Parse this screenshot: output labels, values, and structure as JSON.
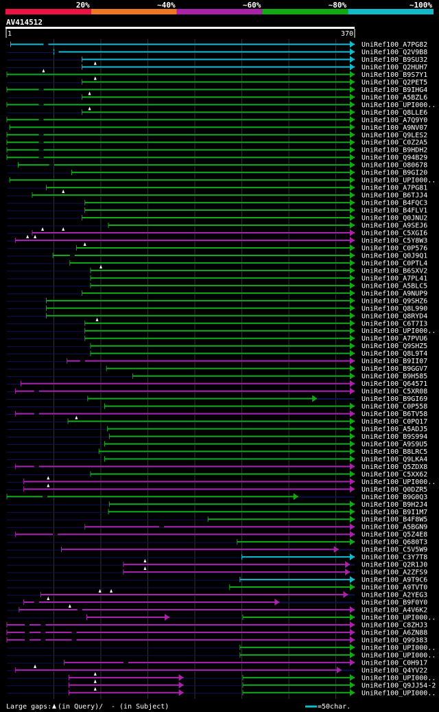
{
  "chart_data": {
    "type": "alignment",
    "title": "AV414512",
    "query_start": 1,
    "query_end": 370,
    "scale_labels": [
      "1",
      "370"
    ],
    "identity_legend": [
      {
        "label": "20%",
        "color": "#ee1144"
      },
      {
        "label": "~40%",
        "color": "#ee7722"
      },
      {
        "label": "~60%",
        "color": "#aa22aa"
      },
      {
        "label": "~80%",
        "color": "#11aa11"
      },
      {
        "label": "~100%",
        "color": "#11bbcc"
      }
    ],
    "footer": {
      "gaps_label": "Large gaps:",
      "gaps_query": "(in Query)/",
      "gaps_subject": "- (in Subject)",
      "scale_note": "=50char."
    },
    "hits": [
      {
        "name": "UniRef100_A7PG82",
        "start": 4,
        "end": 370,
        "color": "teal",
        "tail": 0,
        "gaps": [
          39
        ],
        "carets": []
      },
      {
        "name": "UniRef100_Q2V9B8",
        "start": 50,
        "end": 370,
        "color": "teal",
        "tail": 0,
        "gaps": [
          50
        ],
        "carets": []
      },
      {
        "name": "UniRef100_B9SU32",
        "start": 80,
        "end": 370,
        "color": "teal",
        "tail": 0,
        "gaps": [],
        "carets": []
      },
      {
        "name": "UniRef100_Q2HUH7",
        "start": 80,
        "end": 370,
        "color": "teal",
        "tail": 0,
        "gaps": [],
        "carets": [
          94
        ]
      },
      {
        "name": "UniRef100_B9S7Y1",
        "start": 0,
        "end": 370,
        "color": "green",
        "tail": 0,
        "gaps": [],
        "carets": [
          39
        ]
      },
      {
        "name": "UniRef100_Q2PET5",
        "start": 80,
        "end": 370,
        "color": "green",
        "tail": 0,
        "gaps": [],
        "carets": [
          94
        ]
      },
      {
        "name": "UniRef100_B9IHG4",
        "start": 0,
        "end": 370,
        "color": "green",
        "tail": 0,
        "gaps": [
          34
        ],
        "carets": []
      },
      {
        "name": "UniRef100_A5BZL6",
        "start": 80,
        "end": 370,
        "color": "green",
        "tail": 0,
        "gaps": [],
        "carets": [
          88
        ]
      },
      {
        "name": "UniRef100_UPI000..",
        "start": 0,
        "end": 370,
        "color": "green",
        "tail": 0,
        "gaps": [
          34
        ],
        "carets": []
      },
      {
        "name": "UniRef100_Q8LLE6",
        "start": 80,
        "end": 370,
        "color": "green",
        "tail": 0,
        "gaps": [],
        "carets": [
          88
        ]
      },
      {
        "name": "UniRef100_A7Q9Y0",
        "start": 0,
        "end": 370,
        "color": "green",
        "tail": 0,
        "gaps": [
          34
        ],
        "carets": []
      },
      {
        "name": "UniRef100_A9NV07",
        "start": 3,
        "end": 370,
        "color": "green",
        "tail": 0,
        "gaps": [],
        "carets": []
      },
      {
        "name": "UniRef100_Q9LES2",
        "start": 0,
        "end": 370,
        "color": "green",
        "tail": 0,
        "gaps": [
          34
        ],
        "carets": []
      },
      {
        "name": "UniRef100_C0Z2A5",
        "start": 0,
        "end": 370,
        "color": "green",
        "tail": 0,
        "gaps": [
          34
        ],
        "carets": []
      },
      {
        "name": "UniRef100_B9HDH2",
        "start": 0,
        "end": 370,
        "color": "green",
        "tail": 0,
        "gaps": [
          34
        ],
        "carets": []
      },
      {
        "name": "UniRef100_Q94B29",
        "start": 0,
        "end": 370,
        "color": "green",
        "tail": 0,
        "gaps": [
          34
        ],
        "carets": []
      },
      {
        "name": "UniRef100_O80678",
        "start": 12,
        "end": 370,
        "color": "green",
        "tail": 0,
        "gaps": [
          45
        ],
        "carets": []
      },
      {
        "name": "UniRef100_B9GI20",
        "start": 69,
        "end": 370,
        "color": "green",
        "tail": 0,
        "gaps": [],
        "carets": []
      },
      {
        "name": "UniRef100_UPI000..",
        "start": 3,
        "end": 370,
        "color": "green",
        "tail": 0,
        "gaps": [],
        "carets": []
      },
      {
        "name": "UniRef100_A7PG81",
        "start": 42,
        "end": 370,
        "color": "green",
        "tail": 0,
        "gaps": [],
        "carets": []
      },
      {
        "name": "UniRef100_B6TJJ4",
        "start": 27,
        "end": 370,
        "color": "green",
        "tail": 0,
        "gaps": [],
        "carets": [
          60
        ]
      },
      {
        "name": "UniRef100_B4FQC3",
        "start": 83,
        "end": 370,
        "color": "green",
        "tail": 0,
        "gaps": [],
        "carets": []
      },
      {
        "name": "UniRef100_B4FLV1",
        "start": 83,
        "end": 370,
        "color": "green",
        "tail": 0,
        "gaps": [],
        "carets": []
      },
      {
        "name": "UniRef100_Q0JNU2",
        "start": 80,
        "end": 370,
        "color": "green",
        "tail": 0,
        "gaps": [],
        "carets": []
      },
      {
        "name": "UniRef100_A9SEJ6",
        "start": 108,
        "end": 370,
        "color": "green",
        "tail": 0,
        "gaps": [],
        "carets": []
      },
      {
        "name": "UniRef100_C5XGI6",
        "start": 27,
        "end": 370,
        "color": "purple",
        "tail": 0,
        "gaps": [],
        "carets": [
          38,
          60
        ]
      },
      {
        "name": "UniRef100_C5Y8W3",
        "start": 9,
        "end": 370,
        "color": "purple",
        "tail": 0,
        "gaps": [],
        "carets": [
          22,
          30
        ]
      },
      {
        "name": "UniRef100_C0P576",
        "start": 74,
        "end": 370,
        "color": "green",
        "tail": 0,
        "gaps": [],
        "carets": [
          83
        ]
      },
      {
        "name": "UniRef100_Q0J9Q1",
        "start": 49,
        "end": 370,
        "color": "green",
        "tail": 0,
        "gaps": [
          67
        ],
        "carets": []
      },
      {
        "name": "UniRef100_C0PTL4",
        "start": 67,
        "end": 370,
        "color": "green",
        "tail": 0,
        "gaps": [],
        "carets": []
      },
      {
        "name": "UniRef100_B6SXV2",
        "start": 89,
        "end": 370,
        "color": "green",
        "tail": 0,
        "gaps": [],
        "carets": [
          100
        ]
      },
      {
        "name": "UniRef100_A7PL41",
        "start": 89,
        "end": 370,
        "color": "green",
        "tail": 0,
        "gaps": [],
        "carets": []
      },
      {
        "name": "UniRef100_A5BLC5",
        "start": 89,
        "end": 370,
        "color": "green",
        "tail": 0,
        "gaps": [],
        "carets": []
      },
      {
        "name": "UniRef100_A9NUP9",
        "start": 80,
        "end": 370,
        "color": "green",
        "tail": 0,
        "gaps": [],
        "carets": []
      },
      {
        "name": "UniRef100_Q9SHZ6",
        "start": 42,
        "end": 370,
        "color": "green",
        "tail": 0,
        "gaps": [],
        "carets": []
      },
      {
        "name": "UniRef100_Q8L990",
        "start": 42,
        "end": 370,
        "color": "green",
        "tail": 0,
        "gaps": [],
        "carets": []
      },
      {
        "name": "UniRef100_Q8RYD4",
        "start": 42,
        "end": 370,
        "color": "green",
        "tail": 0,
        "gaps": [],
        "carets": []
      },
      {
        "name": "UniRef100_C6T7I3",
        "start": 83,
        "end": 370,
        "color": "green",
        "tail": 0,
        "gaps": [],
        "carets": [
          96
        ]
      },
      {
        "name": "UniRef100_UPI000..",
        "start": 83,
        "end": 370,
        "color": "green",
        "tail": 0,
        "gaps": [],
        "carets": []
      },
      {
        "name": "UniRef100_A7PVU6",
        "start": 83,
        "end": 370,
        "color": "green",
        "tail": 0,
        "gaps": [],
        "carets": []
      },
      {
        "name": "UniRef100_Q9SHZ5",
        "start": 89,
        "end": 370,
        "color": "green",
        "tail": 0,
        "gaps": [],
        "carets": []
      },
      {
        "name": "UniRef100_Q8L9T4",
        "start": 89,
        "end": 370,
        "color": "green",
        "tail": 0,
        "gaps": [],
        "carets": []
      },
      {
        "name": "UniRef100_B9II07",
        "start": 64,
        "end": 370,
        "color": "purple",
        "tail": 0,
        "gaps": [
          78
        ],
        "carets": []
      },
      {
        "name": "UniRef100_B9GGV7",
        "start": 106,
        "end": 370,
        "color": "green",
        "tail": 0,
        "gaps": [],
        "carets": []
      },
      {
        "name": "UniRef100_B9H585",
        "start": 134,
        "end": 370,
        "color": "green",
        "tail": 0,
        "gaps": [],
        "carets": []
      },
      {
        "name": "UniRef100_Q64571",
        "start": 15,
        "end": 370,
        "color": "purple",
        "tail": 0,
        "gaps": [],
        "carets": []
      },
      {
        "name": "UniRef100_C5XR08",
        "start": 9,
        "end": 370,
        "color": "purple",
        "tail": 0,
        "gaps": [
          29
        ],
        "carets": []
      },
      {
        "name": "UniRef100_B9GI69",
        "start": 86,
        "end": 330,
        "color": "green",
        "tail": 40,
        "gaps": [],
        "carets": []
      },
      {
        "name": "UniRef100_C0P558",
        "start": 104,
        "end": 370,
        "color": "green",
        "tail": 0,
        "gaps": [],
        "carets": []
      },
      {
        "name": "UniRef100_B6TV58",
        "start": 9,
        "end": 370,
        "color": "purple",
        "tail": 0,
        "gaps": [
          29
        ],
        "carets": []
      },
      {
        "name": "UniRef100_C0PQ17",
        "start": 65,
        "end": 370,
        "color": "green",
        "tail": 0,
        "gaps": [],
        "carets": [
          74
        ]
      },
      {
        "name": "UniRef100_A5ADJ5",
        "start": 107,
        "end": 370,
        "color": "green",
        "tail": 0,
        "gaps": [],
        "carets": []
      },
      {
        "name": "UniRef100_B9S994",
        "start": 109,
        "end": 370,
        "color": "green",
        "tail": 0,
        "gaps": [],
        "carets": []
      },
      {
        "name": "UniRef100_A9S9U5",
        "start": 104,
        "end": 370,
        "color": "green",
        "tail": 0,
        "gaps": [],
        "carets": []
      },
      {
        "name": "UniRef100_B8LRC5",
        "start": 98,
        "end": 370,
        "color": "green",
        "tail": 0,
        "gaps": [],
        "carets": []
      },
      {
        "name": "UniRef100_Q9LKA4",
        "start": 104,
        "end": 370,
        "color": "green",
        "tail": 0,
        "gaps": [],
        "carets": []
      },
      {
        "name": "UniRef100_Q5ZDX8",
        "start": 9,
        "end": 370,
        "color": "purple",
        "tail": 0,
        "gaps": [
          29
        ],
        "carets": []
      },
      {
        "name": "UniRef100_C5XX62",
        "start": 89,
        "end": 370,
        "color": "green",
        "tail": 0,
        "gaps": [],
        "carets": []
      },
      {
        "name": "UniRef100_UPI000..",
        "start": 18,
        "end": 370,
        "color": "purple",
        "tail": 0,
        "gaps": [],
        "carets": [
          44
        ]
      },
      {
        "name": "UniRef100_Q0DZR5",
        "start": 18,
        "end": 370,
        "color": "purple",
        "tail": 0,
        "gaps": [],
        "carets": [
          44
        ]
      },
      {
        "name": "UniRef100_B9G0Q3",
        "start": 0,
        "end": 310,
        "color": "green",
        "tail": 60,
        "gaps": [
          38
        ],
        "carets": []
      },
      {
        "name": "UniRef100_B9H2J4",
        "start": 109,
        "end": 370,
        "color": "green",
        "tail": 0,
        "gaps": [],
        "carets": []
      },
      {
        "name": "UniRef100_B9I1M7",
        "start": 108,
        "end": 370,
        "color": "green",
        "tail": 0,
        "gaps": [],
        "carets": []
      },
      {
        "name": "UniRef100_B4F8W5",
        "start": 214,
        "end": 370,
        "color": "green",
        "tail": 0,
        "gaps": [],
        "carets": []
      },
      {
        "name": "UniRef100_A5BGN9",
        "start": 83,
        "end": 370,
        "color": "purple",
        "tail": 0,
        "gaps": [
          162
        ],
        "carets": []
      },
      {
        "name": "UniRef100_Q5Z4E8",
        "start": 9,
        "end": 370,
        "color": "purple",
        "tail": 0,
        "gaps": [
          49
        ],
        "carets": []
      },
      {
        "name": "UniRef100_Q680T3",
        "start": 245,
        "end": 370,
        "color": "green",
        "tail": 0,
        "gaps": [],
        "carets": []
      },
      {
        "name": "UniRef100_C5V5W9",
        "start": 58,
        "end": 353,
        "color": "purple",
        "tail": 17,
        "gaps": [],
        "carets": []
      },
      {
        "name": "UniRef100_C3Y7T8",
        "start": 250,
        "end": 370,
        "color": "teal",
        "tail": 0,
        "gaps": [],
        "carets": []
      },
      {
        "name": "UniRef100_Q2R1J0",
        "start": 124,
        "end": 365,
        "color": "purple",
        "tail": 5,
        "gaps": [],
        "carets": [
          147
        ]
      },
      {
        "name": "UniRef100_A2ZFS9",
        "start": 124,
        "end": 365,
        "color": "purple",
        "tail": 5,
        "gaps": [],
        "carets": [
          147
        ]
      },
      {
        "name": "UniRef100_A9T9C6",
        "start": 248,
        "end": 370,
        "color": "teal",
        "tail": 0,
        "gaps": [],
        "carets": []
      },
      {
        "name": "UniRef100_A9TVT0",
        "start": 237,
        "end": 370,
        "color": "green",
        "tail": 0,
        "gaps": [],
        "carets": []
      },
      {
        "name": "UniRef100_A2YEG3",
        "start": 36,
        "end": 363,
        "color": "purple",
        "tail": 7,
        "gaps": [],
        "carets": [
          99,
          111
        ]
      },
      {
        "name": "UniRef100_B9F0Y0",
        "start": 18,
        "end": 290,
        "color": "purple",
        "tail": 80,
        "gaps": [
          29
        ],
        "carets": [
          44
        ]
      },
      {
        "name": "UniRef100_A4V6K2",
        "start": 13,
        "end": 370,
        "color": "purple",
        "tail": 0,
        "gaps": [
          75
        ],
        "carets": [
          67
        ]
      },
      {
        "name": "UniRef100_UPI000..",
        "start": 85,
        "end": 173,
        "color": "purple",
        "tail": 0,
        "gaps": [],
        "carets": [],
        "extra": {
          "start": 251,
          "end": 370,
          "color": "green"
        }
      },
      {
        "name": "UniRef100_C8ZHJ3",
        "start": 0,
        "end": 370,
        "color": "purple",
        "tail": 0,
        "gaps": [
          19,
          36
        ],
        "carets": []
      },
      {
        "name": "UniRef100_A6ZN88",
        "start": 0,
        "end": 370,
        "color": "purple",
        "tail": 0,
        "gaps": [
          19,
          36,
          69
        ],
        "carets": []
      },
      {
        "name": "UniRef100_Q99383",
        "start": 0,
        "end": 370,
        "color": "purple",
        "tail": 0,
        "gaps": [
          19,
          36,
          69
        ],
        "carets": []
      },
      {
        "name": "UniRef100_UPI000..",
        "start": 248,
        "end": 370,
        "color": "green",
        "tail": 0,
        "gaps": [],
        "carets": []
      },
      {
        "name": "UniRef100_UPI000..",
        "start": 248,
        "end": 370,
        "color": "green",
        "tail": 0,
        "gaps": [],
        "carets": []
      },
      {
        "name": "UniRef100_C0H917",
        "start": 61,
        "end": 370,
        "color": "purple",
        "tail": 0,
        "gaps": [
          124
        ],
        "carets": []
      },
      {
        "name": "UniRef100_Q4YV22",
        "start": 9,
        "end": 356,
        "color": "purple",
        "tail": 14,
        "gaps": [],
        "carets": [
          30
        ]
      },
      {
        "name": "UniRef100_UPI000..",
        "start": 66,
        "end": 188,
        "color": "purple",
        "tail": 0,
        "gaps": [],
        "carets": [
          94
        ],
        "extra": {
          "start": 251,
          "end": 370,
          "color": "green"
        }
      },
      {
        "name": "UniRef100_Q9JJ54-2",
        "start": 66,
        "end": 188,
        "color": "purple",
        "tail": 0,
        "gaps": [],
        "carets": [
          94
        ],
        "extra": {
          "start": 251,
          "end": 370,
          "color": "green"
        }
      },
      {
        "name": "UniRef100_UPI000..",
        "start": 66,
        "end": 188,
        "color": "purple",
        "tail": 0,
        "gaps": [],
        "carets": [
          94
        ],
        "extra": {
          "start": 251,
          "end": 370,
          "color": "green"
        }
      }
    ]
  },
  "colors": {
    "background": "#000000",
    "teal": "#11bbcc",
    "green": "#11aa11",
    "purple": "#aa22aa",
    "grid": "#333333",
    "unaligned": "#111155",
    "text": "#ffffff"
  }
}
